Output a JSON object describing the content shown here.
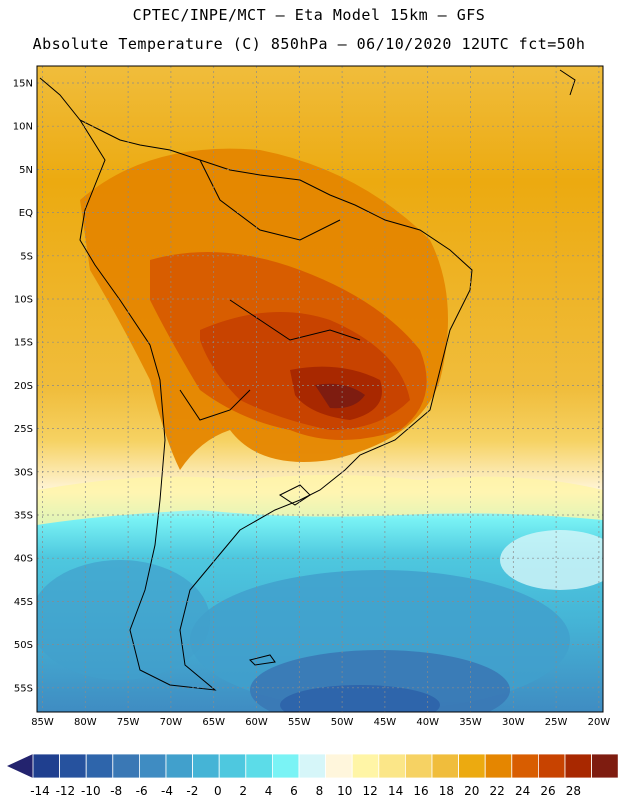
{
  "header": {
    "line1": "CPTEC/INPE/MCT – Eta Model 15km – GFS",
    "line2": "Absolute Temperature (C) 850hPa – 06/10/2020 12UTC fct=50h"
  },
  "map": {
    "lat_labels": [
      "15N",
      "10N",
      "5N",
      "EQ",
      "5S",
      "10S",
      "15S",
      "20S",
      "25S",
      "30S",
      "35S",
      "40S",
      "45S",
      "50S",
      "55S"
    ],
    "lon_labels": [
      "85W",
      "80W",
      "75W",
      "70W",
      "65W",
      "60W",
      "55W",
      "50W",
      "45W",
      "40W",
      "35W",
      "30W",
      "25W",
      "20W"
    ]
  },
  "colorbar": {
    "labels": [
      "-14",
      "-12",
      "-10",
      "-8",
      "-6",
      "-4",
      "-2",
      "0",
      "2",
      "4",
      "6",
      "8",
      "10",
      "12",
      "14",
      "16",
      "18",
      "20",
      "22",
      "24",
      "26",
      "28"
    ],
    "colors": [
      "#1f3f8f",
      "#26529e",
      "#2e65ab",
      "#3a78b5",
      "#3f8cc2",
      "#41a0cc",
      "#45b4d6",
      "#4ec8df",
      "#5cdce8",
      "#7af3f5",
      "#d6f6f9",
      "#fff6dc",
      "#fff5a6",
      "#fbe688",
      "#f6d263",
      "#f0bd3c",
      "#ecaa10",
      "#e58600",
      "#d85d00",
      "#c84300",
      "#a82800",
      "#7e1c10"
    ]
  }
}
